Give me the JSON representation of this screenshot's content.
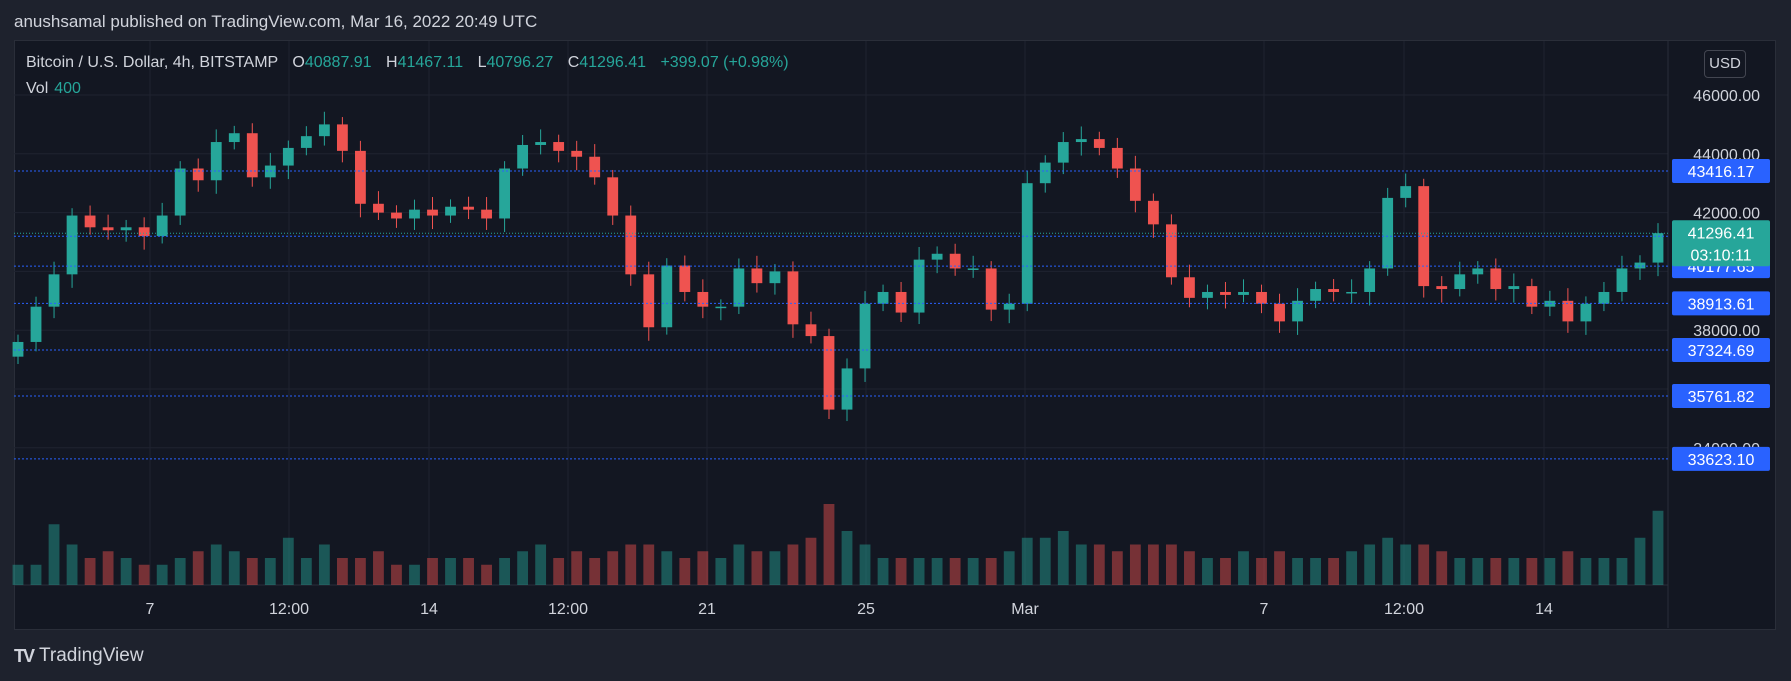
{
  "header": {
    "published_by": "anushsamal published on TradingView.com, Mar 16, 2022 20:49 UTC"
  },
  "legend": {
    "symbol": "Bitcoin / U.S. Dollar, 4h, BITSTAMP",
    "o_label": "O",
    "o_value": "40887.91",
    "h_label": "H",
    "h_value": "41467.11",
    "l_label": "L",
    "l_value": "40796.27",
    "c_label": "C",
    "c_value": "41296.41",
    "change": "+399.07 (+0.98%)",
    "vol_label": "Vol",
    "vol_value": "400"
  },
  "currency_button": "USD",
  "footer": {
    "brand": "TradingView",
    "logo_glyph": "TV"
  },
  "colors": {
    "up": "#26a69a",
    "down": "#ef5350",
    "line": "#2962ff",
    "background": "#131722"
  },
  "chart_data": {
    "type": "candlestick",
    "title": "Bitcoin / U.S. Dollar, 4h, BITSTAMP",
    "y_range": [
      33000,
      46600
    ],
    "y_ticks": [
      34000,
      36000,
      38000,
      40000,
      42000,
      44000,
      46000
    ],
    "x_tick_labels": [
      "7",
      "12:00",
      "14",
      "12:00",
      "21",
      "25",
      "Mar",
      "7",
      "12:00",
      "14"
    ],
    "price_lines": [
      43416.17,
      41196.7,
      40177.65,
      38913.61,
      37324.69,
      35761.82,
      33623.1
    ],
    "current_price": {
      "value": "41296.41",
      "countdown": "03:10:11"
    },
    "closes": [
      37600,
      38800,
      39900,
      41900,
      41500,
      41400,
      41500,
      41200,
      41900,
      43500,
      43100,
      44400,
      44700,
      43200,
      43600,
      44200,
      44600,
      45000,
      44100,
      42300,
      42000,
      41800,
      42100,
      41900,
      42200,
      42100,
      41800,
      43500,
      44300,
      44400,
      44100,
      43900,
      43200,
      41900,
      39900,
      38100,
      40200,
      39300,
      38800,
      38800,
      40100,
      39600,
      40000,
      38200,
      37800,
      35300,
      36700,
      38900,
      39300,
      38600,
      40400,
      40600,
      40100,
      40100,
      38700,
      38900,
      43000,
      43700,
      44400,
      44500,
      44200,
      43500,
      42400,
      41600,
      39800,
      39100,
      39300,
      39200,
      39300,
      38900,
      38300,
      39000,
      39400,
      39300,
      39300,
      40100,
      42500,
      42900,
      39500,
      39400,
      39900,
      40100,
      39400,
      39500,
      38800,
      39000,
      38300,
      38900,
      39300,
      40100,
      40300,
      41300
    ],
    "volumes": [
      0.15,
      0.15,
      0.45,
      0.3,
      0.2,
      0.25,
      0.2,
      0.15,
      0.15,
      0.2,
      0.25,
      0.3,
      0.25,
      0.2,
      0.2,
      0.35,
      0.2,
      0.3,
      0.2,
      0.2,
      0.25,
      0.15,
      0.15,
      0.2,
      0.2,
      0.2,
      0.15,
      0.2,
      0.25,
      0.3,
      0.2,
      0.25,
      0.2,
      0.25,
      0.3,
      0.3,
      0.25,
      0.2,
      0.25,
      0.2,
      0.3,
      0.25,
      0.25,
      0.3,
      0.35,
      0.6,
      0.4,
      0.3,
      0.2,
      0.2,
      0.2,
      0.2,
      0.2,
      0.2,
      0.2,
      0.25,
      0.35,
      0.35,
      0.4,
      0.3,
      0.3,
      0.25,
      0.3,
      0.3,
      0.3,
      0.25,
      0.2,
      0.2,
      0.25,
      0.2,
      0.25,
      0.2,
      0.2,
      0.2,
      0.25,
      0.3,
      0.35,
      0.3,
      0.3,
      0.25,
      0.2,
      0.2,
      0.2,
      0.2,
      0.2,
      0.2,
      0.25,
      0.2,
      0.2,
      0.2,
      0.35,
      0.55
    ]
  }
}
